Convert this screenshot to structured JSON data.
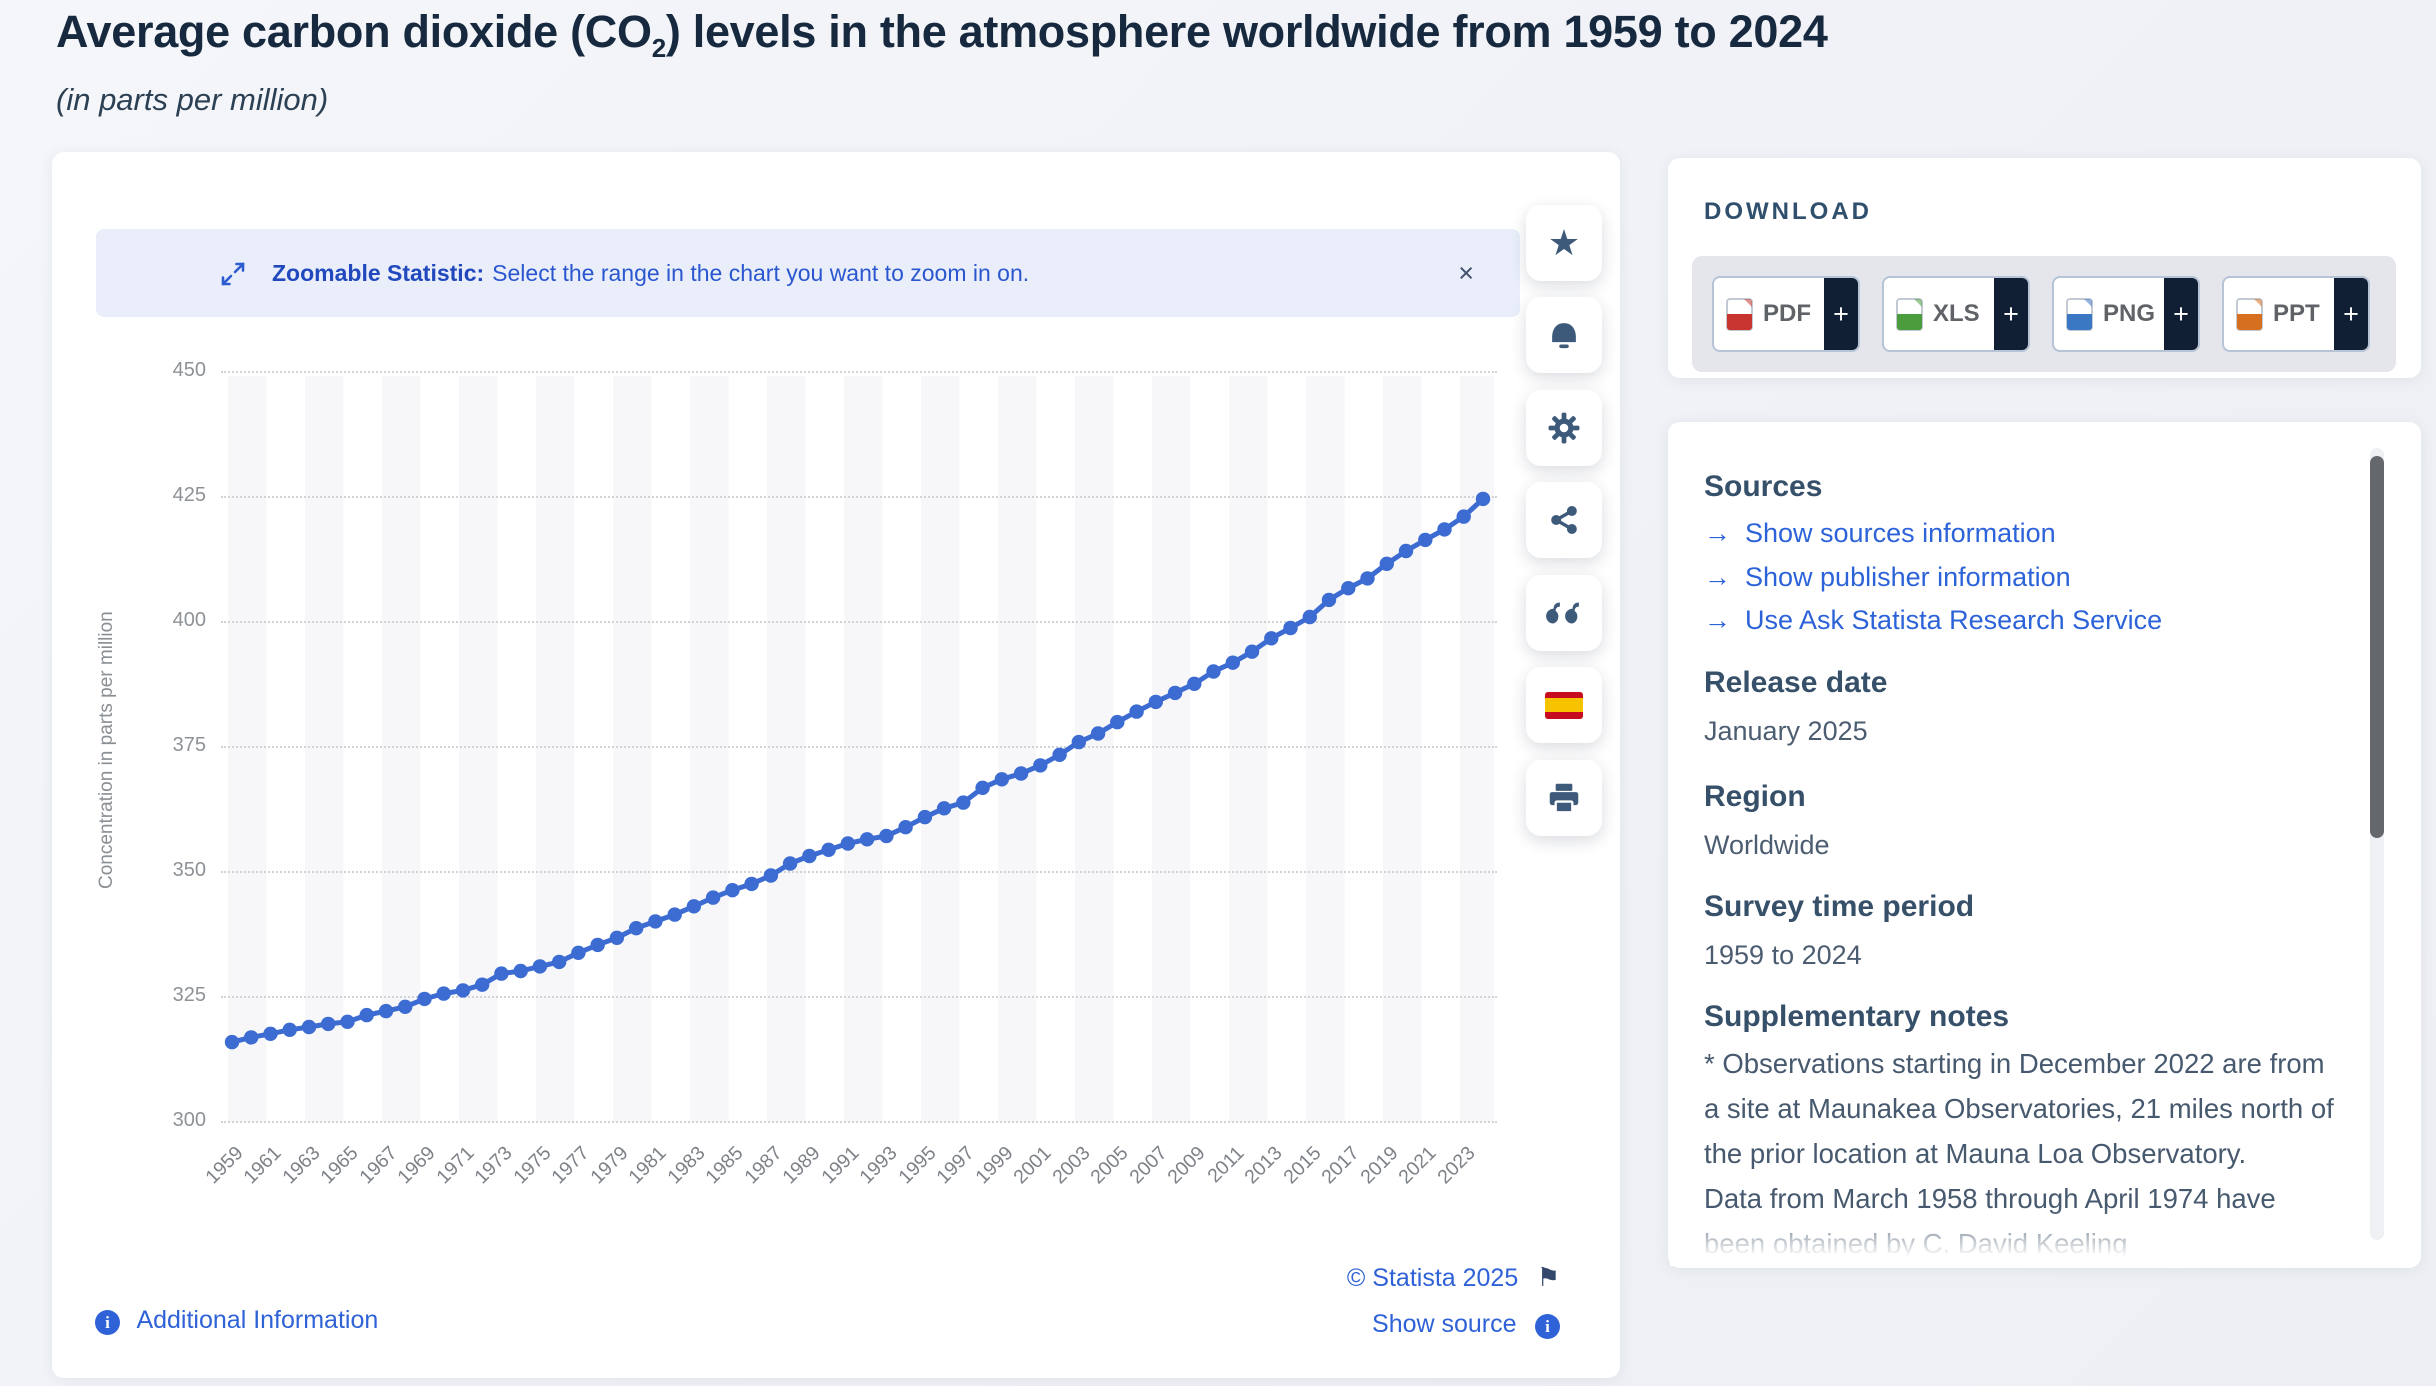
{
  "page": {
    "title_pre": "Average carbon dioxide (CO",
    "title_sub": "2",
    "title_post": ") levels in the atmosphere worldwide from 1959 to 2024",
    "subtitle": "(in parts per million)"
  },
  "banner": {
    "bold": "Zoomable Statistic:",
    "text": "Select the range in the chart you want to zoom in on.",
    "close": "×"
  },
  "toolbar": {
    "icons": [
      "favorite-star",
      "alert-bell",
      "settings-gear",
      "share",
      "citation-quote",
      "language-spanish-flag",
      "print"
    ]
  },
  "chart_data": {
    "type": "line",
    "title": "Average carbon dioxide (CO2) levels in the atmosphere worldwide from 1959 to 2024",
    "ylabel": "Concentration in parts per million",
    "ylim": [
      300,
      450
    ],
    "yticks": [
      450,
      425,
      400,
      375,
      350,
      325,
      300
    ],
    "xtick_step": 2,
    "grid": "horizontal-dotted",
    "background_stripes": true,
    "line_color": "#3c6bd2",
    "years": [
      1959,
      1960,
      1961,
      1962,
      1963,
      1964,
      1965,
      1966,
      1967,
      1968,
      1969,
      1970,
      1971,
      1972,
      1973,
      1974,
      1975,
      1976,
      1977,
      1978,
      1979,
      1980,
      1981,
      1982,
      1983,
      1984,
      1985,
      1986,
      1987,
      1988,
      1989,
      1990,
      1991,
      1992,
      1993,
      1994,
      1995,
      1996,
      1997,
      1998,
      1999,
      2000,
      2001,
      2002,
      2003,
      2004,
      2005,
      2006,
      2007,
      2008,
      2009,
      2010,
      2011,
      2012,
      2013,
      2014,
      2015,
      2016,
      2017,
      2018,
      2019,
      2020,
      2021,
      2022,
      2023,
      2024
    ],
    "values": [
      315.98,
      316.91,
      317.64,
      318.45,
      318.99,
      319.62,
      320.04,
      321.37,
      322.18,
      323.05,
      324.62,
      325.68,
      326.32,
      327.46,
      329.68,
      330.19,
      331.12,
      332.03,
      333.84,
      335.41,
      336.84,
      338.76,
      340.12,
      341.48,
      343.15,
      344.87,
      346.35,
      347.61,
      349.31,
      351.69,
      353.2,
      354.45,
      355.7,
      356.54,
      357.21,
      358.96,
      360.97,
      362.74,
      363.88,
      366.84,
      368.54,
      369.71,
      371.32,
      373.45,
      375.98,
      377.7,
      379.98,
      382.09,
      384.02,
      385.83,
      387.64,
      390.1,
      391.85,
      394.06,
      396.74,
      398.81,
      401.01,
      404.41,
      406.76,
      408.72,
      411.65,
      414.21,
      416.41,
      418.53,
      421.08,
      424.61
    ]
  },
  "footer": {
    "additional_info": "Additional Information",
    "copyright": "© Statista 2025",
    "show_source": "Show source"
  },
  "download": {
    "heading": "DOWNLOAD",
    "plus": "+",
    "buttons": [
      {
        "label": "PDF",
        "color": "#c8352e"
      },
      {
        "label": "XLS",
        "color": "#4b9c3c"
      },
      {
        "label": "PNG",
        "color": "#3b78c3"
      },
      {
        "label": "PPT",
        "color": "#d6701e"
      }
    ]
  },
  "info_panel": {
    "sources_heading": "Sources",
    "links": [
      "Show sources information",
      "Show publisher information",
      "Use Ask Statista Research Service"
    ],
    "sections": [
      {
        "heading": "Release date",
        "value": "January 2025"
      },
      {
        "heading": "Region",
        "value": "Worldwide"
      },
      {
        "heading": "Survey time period",
        "value": "1959 to 2024"
      }
    ],
    "notes_heading": "Supplementary notes",
    "notes_lines": [
      "* Observations starting in December 2022 are from",
      "a site at Maunakea Observatories, 21 miles north of",
      "the prior location at Mauna Loa Observatory.",
      "Data from March 1958 through April 1974 have",
      "been obtained by C. David Keeling"
    ]
  },
  "colors": {
    "accent_blue": "#2e62d6",
    "title_navy": "#17293f",
    "heading_slate": "#37506a",
    "banner_bg": "#e9eefa",
    "icon_slate": "#3d5a7a",
    "plus_navy": "#101f33"
  }
}
